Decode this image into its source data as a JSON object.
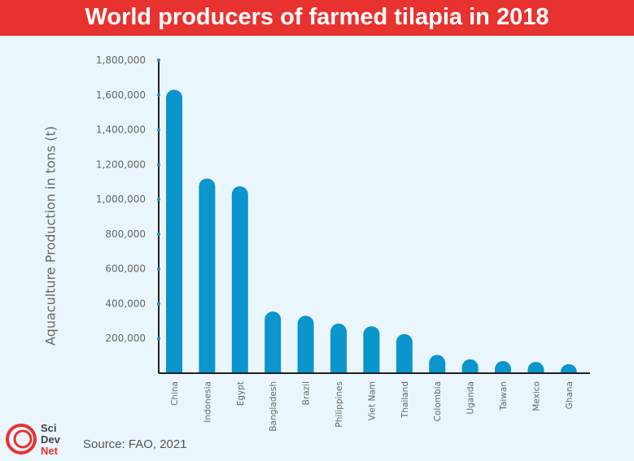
{
  "title": "World producers of farmed tilapia in 2018",
  "source": "Source: FAO, 2021",
  "logo_text": [
    "Sci",
    "Dev",
    "Net"
  ],
  "colors": {
    "title_bar": "#e8322f",
    "bar": "#0a95cd",
    "background": "#eaf6fb"
  },
  "chart_data": {
    "type": "bar",
    "title": "World producers of farmed tilapia in 2018",
    "xlabel": "",
    "ylabel": "Aquaculture Production in tons (t)",
    "ylim": [
      0,
      1800000
    ],
    "yticks": [
      200000,
      400000,
      600000,
      800000,
      1000000,
      1200000,
      1400000,
      1600000,
      1800000
    ],
    "ytick_labels": [
      "200,000",
      "400,000",
      "600,000",
      "800,000",
      "1,000,000",
      "1,200,000",
      "1,400,000",
      "1,600,000",
      "1,800,000"
    ],
    "grid": false,
    "categories": [
      "China",
      "Indonesia",
      "Egypt",
      "Bangladesh",
      "Brazil",
      "Philippines",
      "Viet Nam",
      "Thailand",
      "Colombia",
      "Uganda",
      "Taiwan",
      "Mexico",
      "Ghana"
    ],
    "values": [
      1630000,
      1120000,
      1075000,
      355000,
      330000,
      285000,
      270000,
      225000,
      105000,
      80000,
      70000,
      65000,
      52000
    ]
  }
}
